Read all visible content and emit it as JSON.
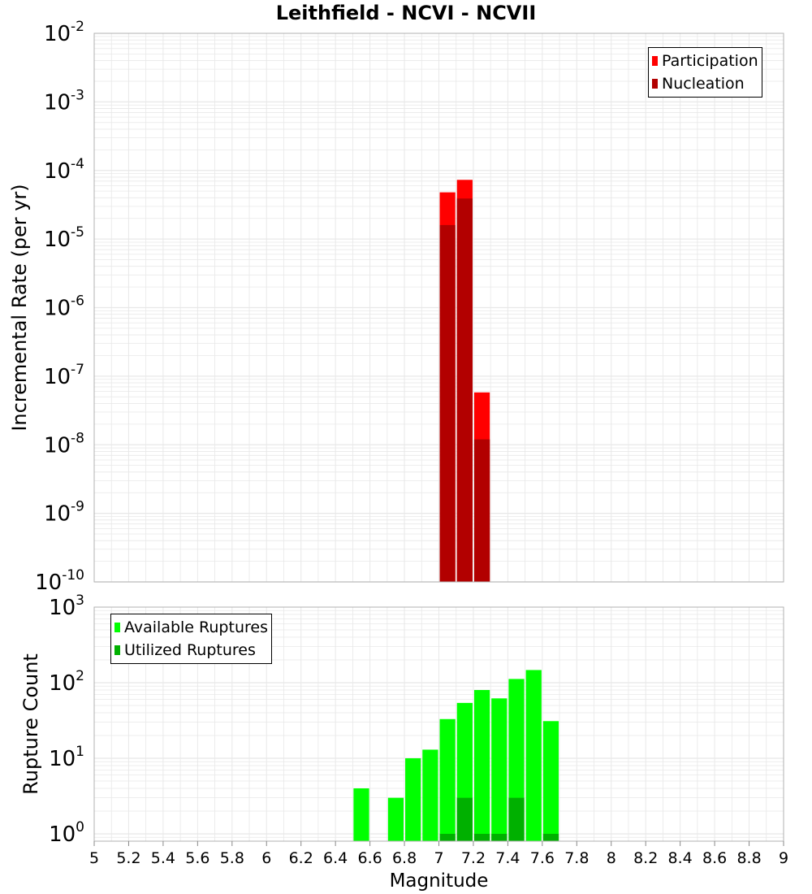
{
  "title": "Leithfield - NCVI - NCVII",
  "colors": {
    "participation": "#ff0000",
    "nucleation": "#b20000",
    "available": "#00ff00",
    "utilized": "#00b000",
    "grid": "#e8e8e8",
    "frame": "#b0b0b0"
  },
  "chart_data": [
    {
      "type": "bar",
      "name": "rate",
      "title": "Leithfield - NCVI - NCVII",
      "xlabel": "",
      "ylabel": "Incremental Rate (per yr)",
      "yscale": "log",
      "xlim": [
        5,
        9
      ],
      "ylim": [
        1e-10,
        0.01
      ],
      "y_ticks": [
        {
          "exp": -10,
          "base": "10",
          "sup": "-10"
        },
        {
          "exp": -9,
          "base": "10",
          "sup": "-9"
        },
        {
          "exp": -8,
          "base": "10",
          "sup": "-8"
        },
        {
          "exp": -7,
          "base": "10",
          "sup": "-7"
        },
        {
          "exp": -6,
          "base": "10",
          "sup": "-6"
        },
        {
          "exp": -5,
          "base": "10",
          "sup": "-5"
        },
        {
          "exp": -4,
          "base": "10",
          "sup": "-4"
        },
        {
          "exp": -3,
          "base": "10",
          "sup": "-3"
        },
        {
          "exp": -2,
          "base": "10",
          "sup": "-2"
        }
      ],
      "legend": {
        "position": "top-right",
        "entries": [
          "Participation",
          "Nucleation"
        ]
      },
      "series": [
        {
          "name": "Participation",
          "x": [
            7.05,
            7.15,
            7.25
          ],
          "values": [
            4.8e-05,
            7.3e-05,
            5.8e-08
          ]
        },
        {
          "name": "Nucleation",
          "x": [
            7.05,
            7.15,
            7.25
          ],
          "values": [
            1.6e-05,
            3.9e-05,
            1.2e-08
          ]
        }
      ]
    },
    {
      "type": "bar",
      "name": "count",
      "xlabel": "Magnitude",
      "ylabel": "Rupture Count",
      "yscale": "log",
      "xlim": [
        5,
        9
      ],
      "ylim": [
        0.8,
        1000
      ],
      "y_ticks": [
        {
          "exp": 0,
          "base": "10",
          "sup": "0"
        },
        {
          "exp": 1,
          "base": "10",
          "sup": "1"
        },
        {
          "exp": 2,
          "base": "10",
          "sup": "2"
        },
        {
          "exp": 3,
          "base": "10",
          "sup": "3"
        }
      ],
      "x_ticks": [
        "5",
        "5.2",
        "5.4",
        "5.6",
        "5.8",
        "6",
        "6.2",
        "6.4",
        "6.6",
        "6.8",
        "7",
        "7.2",
        "7.4",
        "7.6",
        "7.8",
        "8",
        "8.2",
        "8.4",
        "8.6",
        "8.8",
        "9"
      ],
      "legend": {
        "position": "top-left",
        "entries": [
          "Available Ruptures",
          "Utilized Ruptures"
        ]
      },
      "series": [
        {
          "name": "Available Ruptures",
          "x": [
            6.55,
            6.75,
            6.85,
            6.95,
            7.05,
            7.15,
            7.25,
            7.35,
            7.45,
            7.55,
            7.65
          ],
          "values": [
            4,
            3,
            10,
            13,
            33,
            54,
            80,
            62,
            112,
            147,
            31
          ]
        },
        {
          "name": "Utilized Ruptures",
          "x": [
            7.05,
            7.15,
            7.25,
            7.35,
            7.45,
            7.65
          ],
          "values": [
            1,
            3,
            1,
            1,
            3,
            1
          ]
        }
      ]
    }
  ]
}
